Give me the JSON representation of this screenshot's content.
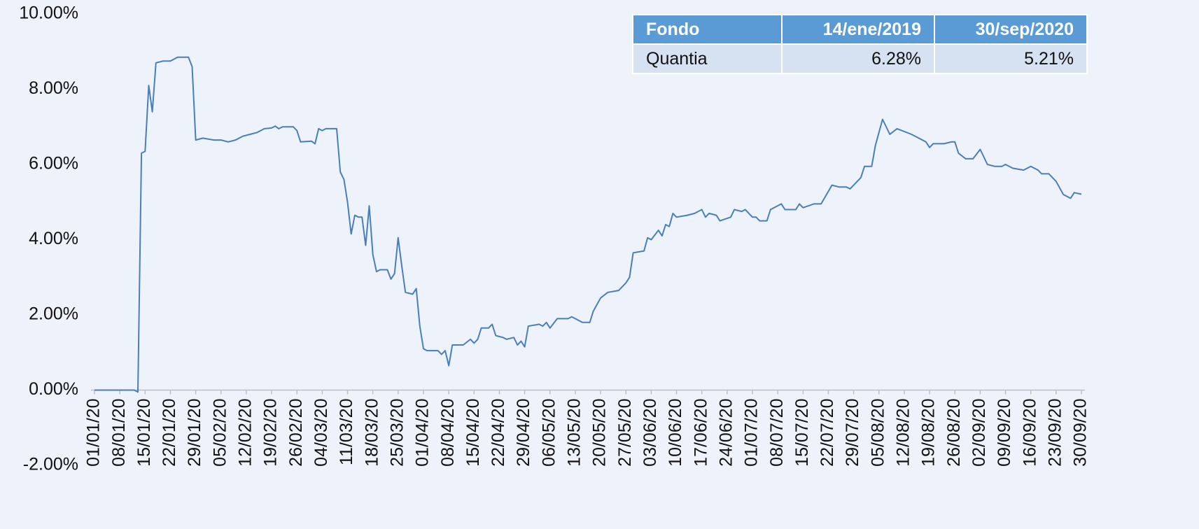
{
  "chart_data": {
    "type": "line",
    "x": [
      "01/01/20",
      "12/01/20",
      "13/01/20",
      "14/01/20",
      "15/01/20",
      "16/01/20",
      "17/01/20",
      "18/01/20",
      "20/01/20",
      "22/01/20",
      "24/01/20",
      "27/01/20",
      "28/01/20",
      "29/01/20",
      "31/01/20",
      "03/02/20",
      "05/02/20",
      "07/02/20",
      "09/02/20",
      "11/02/20",
      "13/02/20",
      "15/02/20",
      "17/02/20",
      "19/02/20",
      "20/02/20",
      "21/02/20",
      "22/02/20",
      "25/02/20",
      "26/02/20",
      "27/02/20",
      "01/03/20",
      "02/03/20",
      "03/03/20",
      "04/03/20",
      "05/03/20",
      "08/03/20",
      "09/03/20",
      "10/03/20",
      "11/03/20",
      "12/03/20",
      "13/03/20",
      "14/03/20",
      "15/03/20",
      "16/03/20",
      "17/03/20",
      "18/03/20",
      "19/03/20",
      "20/03/20",
      "22/03/20",
      "23/03/20",
      "24/03/20",
      "25/03/20",
      "26/03/20",
      "27/03/20",
      "29/03/20",
      "30/03/20",
      "31/03/20",
      "01/04/20",
      "02/04/20",
      "05/04/20",
      "06/04/20",
      "07/04/20",
      "08/04/20",
      "09/04/20",
      "12/04/20",
      "14/04/20",
      "15/04/20",
      "16/04/20",
      "17/04/20",
      "19/04/20",
      "20/04/20",
      "21/04/20",
      "23/04/20",
      "24/04/20",
      "26/04/20",
      "27/04/20",
      "28/04/20",
      "29/04/20",
      "30/04/20",
      "03/05/20",
      "04/05/20",
      "05/05/20",
      "06/05/20",
      "08/05/20",
      "11/05/20",
      "12/05/20",
      "13/05/20",
      "14/05/20",
      "15/05/20",
      "17/05/20",
      "18/05/20",
      "20/05/20",
      "22/05/20",
      "25/05/20",
      "27/05/20",
      "28/05/20",
      "29/05/20",
      "01/06/20",
      "02/06/20",
      "03/06/20",
      "05/06/20",
      "06/06/20",
      "07/06/20",
      "08/06/20",
      "09/06/20",
      "10/06/20",
      "13/06/20",
      "15/06/20",
      "17/06/20",
      "18/06/20",
      "19/06/20",
      "21/06/20",
      "22/06/20",
      "25/06/20",
      "26/06/20",
      "28/06/20",
      "29/06/20",
      "01/07/20",
      "02/07/20",
      "03/07/20",
      "05/07/20",
      "06/07/20",
      "09/07/20",
      "10/07/20",
      "13/07/20",
      "14/07/20",
      "15/07/20",
      "18/07/20",
      "20/07/20",
      "23/07/20",
      "25/07/20",
      "27/07/20",
      "28/07/20",
      "31/07/20",
      "01/08/20",
      "03/08/20",
      "04/08/20",
      "06/08/20",
      "08/08/20",
      "10/08/20",
      "14/08/20",
      "16/08/20",
      "18/08/20",
      "19/08/20",
      "20/08/20",
      "23/08/20",
      "25/08/20",
      "26/08/20",
      "27/08/20",
      "29/08/20",
      "31/08/20",
      "02/09/20",
      "04/09/20",
      "06/09/20",
      "08/09/20",
      "09/09/20",
      "11/09/20",
      "14/09/20",
      "16/09/20",
      "18/09/20",
      "19/09/20",
      "21/09/20",
      "23/09/20",
      "25/09/20",
      "27/09/20",
      "28/09/20",
      "30/09/20"
    ],
    "series": [
      {
        "color": "#4a7ebb",
        "values": [
          0,
          0,
          -0.05,
          6.3,
          6.35,
          8.1,
          7.4,
          8.7,
          8.75,
          8.75,
          8.85,
          8.85,
          8.6,
          6.65,
          6.7,
          6.65,
          6.65,
          6.6,
          6.65,
          6.75,
          6.8,
          6.85,
          6.95,
          6.97,
          7.02,
          6.95,
          7.0,
          7.0,
          6.9,
          6.6,
          6.62,
          6.55,
          6.95,
          6.9,
          6.95,
          6.95,
          5.8,
          5.6,
          5.0,
          4.15,
          4.65,
          4.6,
          4.6,
          3.85,
          4.9,
          3.6,
          3.15,
          3.2,
          3.2,
          2.95,
          3.1,
          4.05,
          3.3,
          2.6,
          2.55,
          2.7,
          1.7,
          1.1,
          1.05,
          1.05,
          0.95,
          1.05,
          0.65,
          1.2,
          1.2,
          1.35,
          1.25,
          1.35,
          1.65,
          1.65,
          1.75,
          1.45,
          1.4,
          1.35,
          1.4,
          1.2,
          1.3,
          1.15,
          1.7,
          1.75,
          1.7,
          1.8,
          1.65,
          1.9,
          1.9,
          1.95,
          1.9,
          1.85,
          1.8,
          1.8,
          2.1,
          2.45,
          2.6,
          2.65,
          2.85,
          3.0,
          3.65,
          3.7,
          4.05,
          4.0,
          4.25,
          4.1,
          4.4,
          4.35,
          4.7,
          4.6,
          4.65,
          4.7,
          4.8,
          4.6,
          4.7,
          4.65,
          4.5,
          4.6,
          4.8,
          4.75,
          4.8,
          4.6,
          4.6,
          4.5,
          4.5,
          4.8,
          4.95,
          4.8,
          4.8,
          4.95,
          4.85,
          4.95,
          4.95,
          5.45,
          5.4,
          5.4,
          5.35,
          5.65,
          5.95,
          5.95,
          6.5,
          7.2,
          6.8,
          6.95,
          6.8,
          6.7,
          6.6,
          6.45,
          6.55,
          6.55,
          6.6,
          6.6,
          6.3,
          6.15,
          6.15,
          6.4,
          6.0,
          5.95,
          5.95,
          6.0,
          5.9,
          5.85,
          5.95,
          5.85,
          5.75,
          5.75,
          5.55,
          5.2,
          5.1,
          5.25,
          5.21
        ]
      }
    ],
    "xlim": [
      "01/01/20",
      "30/09/20"
    ],
    "xticks": [
      "01/01/20",
      "08/01/20",
      "15/01/20",
      "22/01/20",
      "29/01/20",
      "05/02/20",
      "12/02/20",
      "19/02/20",
      "26/02/20",
      "04/03/20",
      "11/03/20",
      "18/03/20",
      "25/03/20",
      "01/04/20",
      "08/04/20",
      "15/04/20",
      "22/04/20",
      "29/04/20",
      "06/05/20",
      "13/05/20",
      "20/05/20",
      "27/05/20",
      "03/06/20",
      "10/06/20",
      "17/06/20",
      "24/06/20",
      "01/07/20",
      "08/07/20",
      "15/07/20",
      "22/07/20",
      "29/07/20",
      "05/08/20",
      "12/08/20",
      "19/08/20",
      "26/08/20",
      "02/09/20",
      "09/09/20",
      "16/09/20",
      "23/09/20",
      "30/09/20"
    ],
    "ylim": [
      -2,
      10
    ],
    "yticks": [
      {
        "value": -2,
        "label": "-2.00%"
      },
      {
        "value": 0,
        "label": "0.00%"
      },
      {
        "value": 2,
        "label": "2.00%"
      },
      {
        "value": 4,
        "label": "4.00%"
      },
      {
        "value": 6,
        "label": "6.00%"
      },
      {
        "value": 8,
        "label": "8.00%"
      },
      {
        "value": 10,
        "label": "10.00%"
      }
    ]
  },
  "table": {
    "header": [
      "Fondo",
      "14/ene/2019",
      "30/sep/2020"
    ],
    "rows": [
      [
        "Quantia",
        "6.28%",
        "5.21%"
      ]
    ]
  }
}
